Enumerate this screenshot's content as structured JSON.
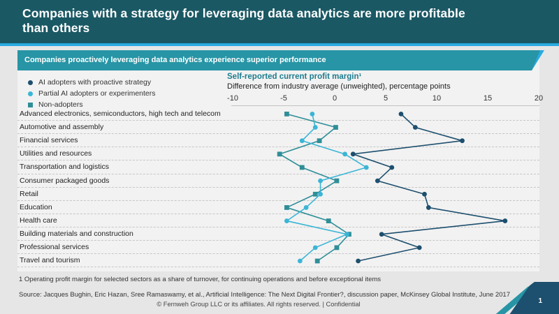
{
  "header": {
    "title": "Companies with a strategy for leveraging data analytics are more profitable than others"
  },
  "banner": {
    "text": "Companies proactively leveraging data analytics experience superior performance"
  },
  "chart_data": {
    "type": "scatter",
    "title": "Self-reported current profit margin¹",
    "subtitle": "Difference from industry average (unweighted), percentage points",
    "axis": {
      "min": -10,
      "max": 20,
      "ticks": [
        -10,
        -5,
        0,
        5,
        10,
        15,
        20
      ]
    },
    "grid": "dashed horizontal row separators",
    "legend_position": "top-left",
    "categories": [
      "Advanced electronics, semiconductors, high tech and telecom",
      "Automotive and assembly",
      "Financial services",
      "Utilities and resources",
      "Transportation and logistics",
      "Consumer packaged goods",
      "Retail",
      "Education",
      "Health care",
      "Building materials and construction",
      "Professional services",
      "Travel and tourism"
    ],
    "series": [
      {
        "name": "AI adopters with proactive strategy",
        "marker": "circle",
        "color": "#1d4f6e",
        "values": [
          6.5,
          7.9,
          12.5,
          1.8,
          5.6,
          4.2,
          8.8,
          9.2,
          16.7,
          4.6,
          8.3,
          2.3
        ]
      },
      {
        "name": "Partial AI adopters or experimenters",
        "marker": "circle",
        "color": "#3bb5d6",
        "values": [
          -2.2,
          -1.9,
          -3.2,
          1.0,
          3.1,
          -1.4,
          -1.4,
          -2.8,
          -4.7,
          1.2,
          -1.9,
          -3.4
        ]
      },
      {
        "name": "Non-adopters",
        "marker": "square",
        "color": "#2f8e98",
        "values": [
          -4.7,
          0.1,
          -1.5,
          -5.4,
          -3.2,
          0.2,
          -1.9,
          -4.7,
          -0.6,
          1.4,
          0.2,
          -1.7
        ]
      }
    ]
  },
  "footnote": "1 Operating profit margin for selected sectors as a share of turnover, for continuing operations and before exceptional items",
  "source": "Source: Jacques Bughin, Eric Hazan, Sree Ramaswamy, et al., Artificial Intelligence: The Next Digital Frontier?, discussion paper, McKinsey Global Institute, June 2017",
  "footer": {
    "copyright": "© Fernweh Group LLC or its affiliates. All rights reserved. | Confidential",
    "page_number": "1"
  },
  "colors": {
    "header_bg": "#1a5864",
    "accent_stripe": "#29aae1",
    "banner_bg": "#2795a5",
    "card_bg": "#f2f2f2",
    "chart_title_accent": "#1e7c8e",
    "corner_navy": "#1d4f6e"
  }
}
